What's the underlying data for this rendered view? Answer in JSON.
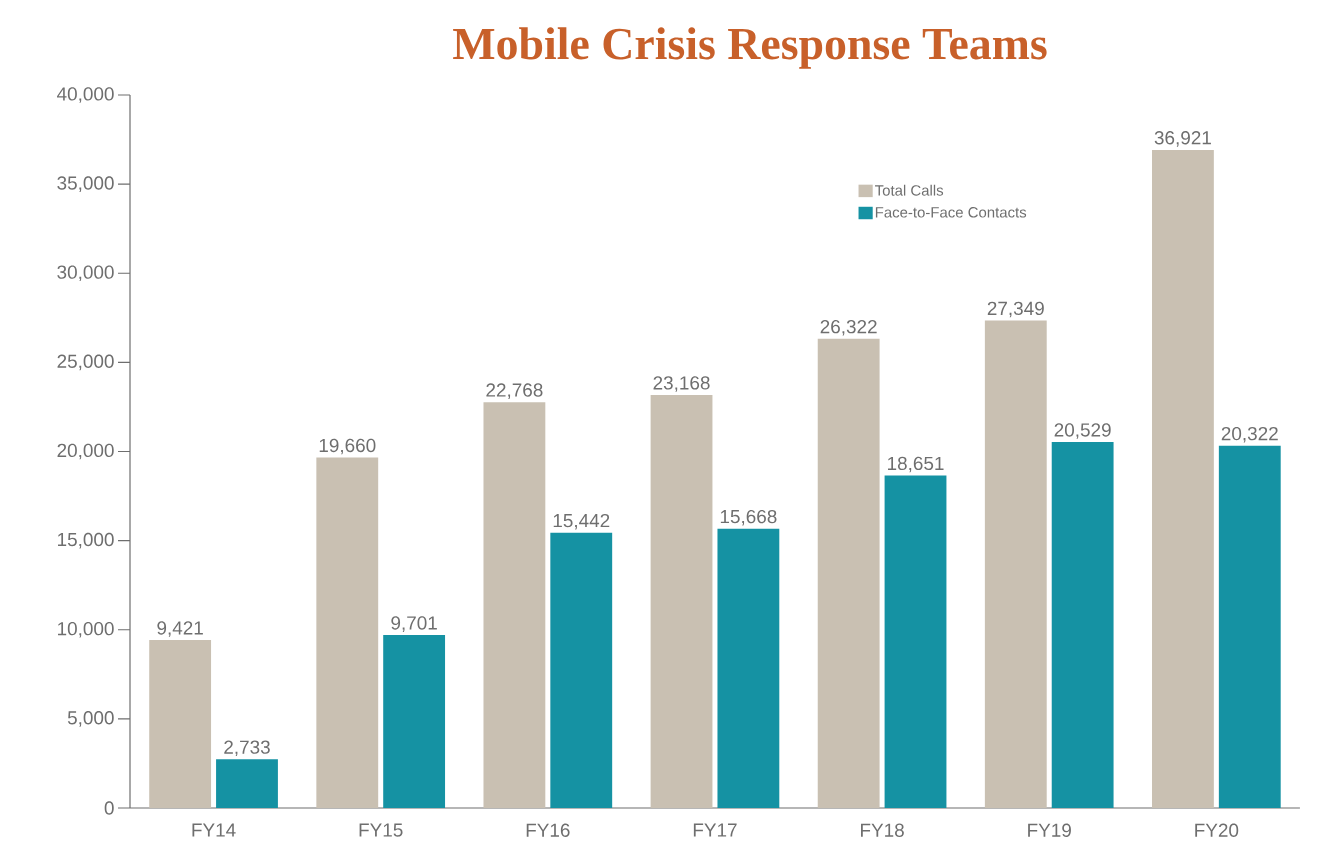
{
  "chart_data": {
    "type": "bar",
    "title": "Mobile Crisis Response Teams",
    "categories": [
      "FY14",
      "FY15",
      "FY16",
      "FY17",
      "FY18",
      "FY19",
      "FY20"
    ],
    "series": [
      {
        "name": "Total Calls",
        "color": "#c9c0b2",
        "values": [
          9421,
          19660,
          22768,
          23168,
          26322,
          27349,
          36921
        ],
        "value_labels": [
          "9,421",
          "19,660",
          "22,768",
          "23,168",
          "26,322",
          "27,349",
          "36,921"
        ]
      },
      {
        "name": "Face-to-Face Contacts",
        "color": "#1592a3",
        "values": [
          2733,
          9701,
          15442,
          15668,
          18651,
          20529,
          20322
        ],
        "value_labels": [
          "2,733",
          "9,701",
          "15,442",
          "15,668",
          "18,651",
          "20,529",
          "20,322"
        ]
      }
    ],
    "ylim": [
      0,
      40000
    ],
    "yticks": [
      0,
      {
        "value": 5000,
        "label": "5,000"
      },
      {
        "value": 10000,
        "label": "10,000"
      },
      {
        "value": 15000,
        "label": "15,000"
      },
      {
        "value": 20000,
        "label": "20,000"
      },
      {
        "value": 25000,
        "label": "25,000"
      },
      {
        "value": 30000,
        "label": "30,000"
      },
      {
        "value": 35000,
        "label": "35,000"
      },
      {
        "value": 40000,
        "label": "40,000"
      }
    ],
    "grid": false,
    "legend": "top right"
  }
}
